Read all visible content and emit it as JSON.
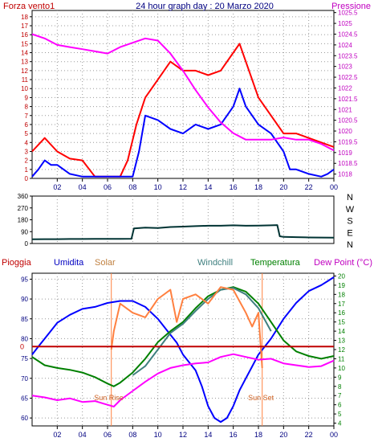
{
  "chart_data": [
    {
      "type": "line",
      "title": "24 hour graph day : 20 Marzo 2020",
      "left_label": "Forza vento1",
      "right_label": "Pressione",
      "x_ticks": [
        "02",
        "04",
        "06",
        "08",
        "10",
        "12",
        "14",
        "16",
        "18",
        "20",
        "22",
        "00"
      ],
      "y_ticks": [
        "0",
        "1",
        "2",
        "3",
        "4",
        "5",
        "6",
        "7",
        "8",
        "9",
        "10",
        "11",
        "12",
        "13",
        "14",
        "15",
        "16",
        "17",
        "18"
      ],
      "y2_ticks": [
        "1018",
        "1018.5",
        "1019",
        "1019.5",
        "1020",
        "1020.5",
        "1021",
        "1021.5",
        "1022",
        "1022.5",
        "1023",
        "1023.5",
        "1024",
        "1024.5",
        "1025",
        "1025.5"
      ],
      "xlim": [
        0,
        24
      ],
      "ylim": [
        0,
        18.7
      ],
      "y2lim": [
        1017.8,
        1025.6
      ],
      "grid": true,
      "series": [
        {
          "role": "gust",
          "color": "#ff0000",
          "x": [
            0,
            1,
            2,
            3,
            4,
            5,
            6,
            7,
            7.6,
            8.3,
            9,
            10,
            11,
            12,
            13,
            14,
            15,
            16,
            16.5,
            17,
            18,
            19,
            20,
            21,
            22,
            23,
            24
          ],
          "y": [
            3,
            4.5,
            3,
            2.2,
            2,
            0.2,
            0.2,
            0.2,
            2,
            6,
            9,
            11,
            13,
            12,
            12,
            11.5,
            12,
            14,
            15,
            13,
            9,
            7,
            5,
            5,
            4.5,
            4,
            3.5
          ]
        },
        {
          "role": "average",
          "color": "#0000ff",
          "x": [
            0,
            0.5,
            1,
            1.5,
            2,
            3,
            4,
            5,
            6,
            7,
            8,
            8.5,
            9,
            10,
            11,
            12,
            13,
            14,
            15,
            16,
            16.5,
            17,
            17.5,
            18,
            19,
            20,
            20.5,
            21,
            22,
            23,
            23.5,
            24
          ],
          "y": [
            0.2,
            1,
            2,
            1.5,
            1.5,
            0.5,
            0.2,
            0.2,
            0.2,
            0.2,
            0.2,
            3,
            7,
            6.5,
            5.5,
            5,
            6,
            5.5,
            6,
            8,
            10,
            8,
            7,
            6,
            5,
            3,
            1,
            1,
            0.5,
            0.2,
            0.5,
            1
          ]
        },
        {
          "role": "pressure",
          "color": "#ff00ff",
          "axis": "right",
          "x": [
            0,
            1,
            2,
            3,
            4,
            5,
            6,
            7,
            8,
            9,
            10,
            11,
            12,
            13,
            14,
            15,
            16,
            17,
            18,
            19,
            20,
            21,
            22,
            23,
            24
          ],
          "y": [
            1024.5,
            1024.3,
            1024,
            1023.9,
            1023.8,
            1023.7,
            1023.6,
            1023.9,
            1024.1,
            1024.3,
            1024.2,
            1023.6,
            1022.8,
            1021.9,
            1021.1,
            1020.4,
            1019.9,
            1019.6,
            1019.6,
            1019.6,
            1019.7,
            1019.6,
            1019.6,
            1019.4,
            1019.1
          ]
        }
      ]
    },
    {
      "type": "line",
      "y_ticks": [
        "0",
        "90",
        "180",
        "270",
        "360"
      ],
      "direction_labels": [
        "N",
        "W",
        "S",
        "E",
        "N"
      ],
      "xlim": [
        0,
        24
      ],
      "ylim": [
        0,
        360
      ],
      "series": [
        {
          "role": "wind-direction",
          "color": "#003333",
          "x": [
            0,
            1,
            2,
            3,
            4,
            5,
            6,
            7,
            7.9,
            8.1,
            9,
            10,
            11,
            12,
            13,
            14,
            15,
            16,
            17,
            18,
            19,
            19.5,
            19.7,
            20,
            21,
            22,
            23,
            24
          ],
          "y": [
            32,
            33,
            33,
            34,
            34,
            35,
            35,
            35,
            36,
            115,
            120,
            118,
            125,
            128,
            132,
            135,
            135,
            138,
            135,
            136,
            138,
            140,
            55,
            50,
            48,
            46,
            45,
            44
          ]
        }
      ]
    },
    {
      "type": "line",
      "labels": {
        "rain": "Pioggia",
        "humidity": "Umidita",
        "solar": "Solar",
        "windchill": "Windchill",
        "temperature": "Temperatura",
        "dewpoint": "Dew Point (°C)"
      },
      "annotations": [
        "Sun Rise",
        "Sun Set"
      ],
      "x_ticks": [
        "02",
        "04",
        "06",
        "08",
        "10",
        "12",
        "14",
        "16",
        "18",
        "20",
        "22",
        "00"
      ],
      "y_ticks": [
        "60",
        "65",
        "70",
        "75",
        "80",
        "85",
        "90",
        "95"
      ],
      "y2_ticks": [
        "4",
        "5",
        "6",
        "7",
        "8",
        "9",
        "10",
        "11",
        "12",
        "13",
        "14",
        "15",
        "16",
        "17",
        "18",
        "19",
        "20"
      ],
      "rain_tick": "0",
      "xlim": [
        0,
        24
      ],
      "ylim": [
        58,
        96.5
      ],
      "y2lim": [
        3.7,
        20.3
      ],
      "grid": true,
      "series": [
        {
          "role": "humidity",
          "color": "#0000ff",
          "axis": "left",
          "x": [
            0,
            0.5,
            1,
            1.5,
            2,
            3,
            4,
            5,
            6,
            7,
            8,
            9,
            10,
            11,
            11.5,
            12,
            13,
            13.5,
            14,
            14.5,
            15,
            15.5,
            16,
            16.5,
            17,
            17.5,
            18,
            19,
            20,
            21,
            22,
            23,
            23.5,
            24
          ],
          "y": [
            76,
            78,
            80,
            82,
            84,
            86,
            87.5,
            88,
            89,
            89.5,
            89.5,
            88,
            85,
            81,
            79,
            76,
            72,
            68,
            63,
            60,
            59,
            60,
            63,
            67,
            70,
            73,
            76,
            80,
            85,
            89,
            92,
            93.5,
            94.5,
            95.5
          ]
        },
        {
          "role": "temperature",
          "color": "#008000",
          "axis": "right",
          "x": [
            0,
            1,
            2,
            3,
            4,
            5,
            6,
            6.5,
            7,
            8,
            9,
            10,
            11,
            12,
            13,
            14,
            15,
            16,
            17,
            18,
            19,
            20,
            21,
            22,
            23,
            24
          ],
          "y": [
            11.2,
            10.3,
            10,
            9.8,
            9.5,
            9,
            8.3,
            8,
            8.4,
            9.5,
            11,
            12.8,
            14,
            15,
            16.5,
            17.8,
            18.5,
            18.8,
            18.3,
            17,
            15,
            13,
            11.8,
            11.3,
            11,
            11.3
          ]
        },
        {
          "role": "windchill",
          "color": "#408080",
          "axis": "right",
          "x": [
            8,
            9,
            10,
            11,
            12,
            13,
            14,
            15,
            16,
            17,
            18,
            19
          ],
          "y": [
            9.2,
            10.2,
            12,
            13.8,
            14.8,
            16.2,
            17.5,
            18.5,
            18.7,
            18,
            16.5,
            14
          ]
        },
        {
          "role": "solar",
          "color": "#ff8040",
          "axis": "right",
          "x": [
            6.3,
            6.5,
            7,
            8,
            9,
            10,
            11,
            11.5,
            12,
            13,
            14,
            15,
            16,
            17,
            17.5,
            18,
            18.3
          ],
          "y": [
            12,
            14,
            17,
            16,
            15.5,
            17.5,
            18.5,
            15,
            17.5,
            18,
            17,
            18.8,
            18.5,
            16,
            14.5,
            16,
            10
          ]
        },
        {
          "role": "dewpoint",
          "color": "#ff00ff",
          "axis": "right",
          "x": [
            0,
            1,
            2,
            3,
            4,
            5,
            6,
            6.5,
            7,
            8,
            9,
            10,
            11,
            12,
            13,
            14,
            15,
            16,
            17,
            18,
            19,
            20,
            21,
            22,
            23,
            24
          ],
          "y": [
            7,
            6.8,
            6.5,
            6.7,
            6.3,
            6.4,
            6,
            5.8,
            6.5,
            7.5,
            8.5,
            9.4,
            10,
            10.3,
            10.5,
            10.6,
            11.2,
            11.5,
            11.2,
            10.9,
            11,
            10.5,
            10.3,
            10.1,
            10.2,
            10.8
          ]
        },
        {
          "role": "rain",
          "color": "#c00000",
          "axis": "left",
          "x": [
            0,
            24
          ],
          "y": [
            78,
            78
          ]
        }
      ]
    }
  ]
}
